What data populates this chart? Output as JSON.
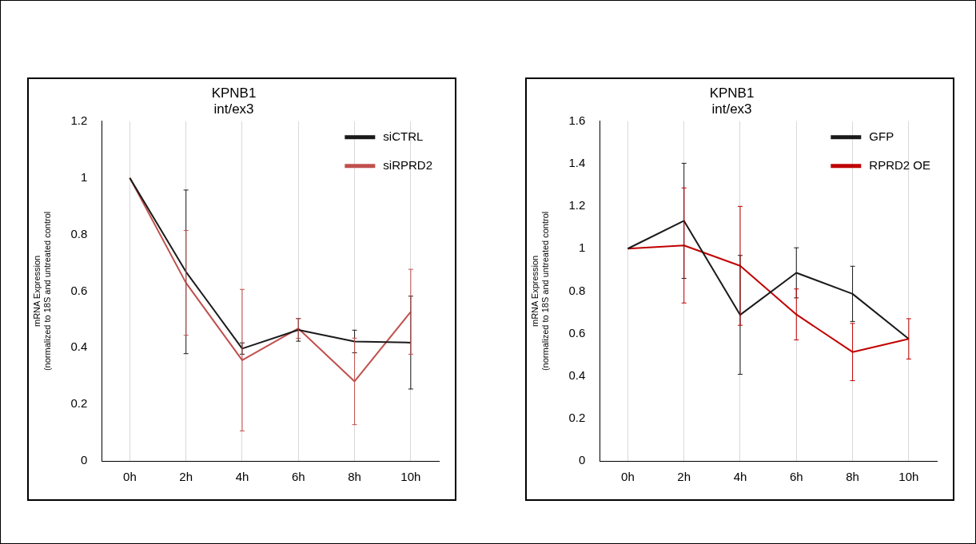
{
  "chart_data": [
    {
      "type": "line",
      "title": "KPNB1\nint/ex3",
      "ylabel": "mRNA Expression\n(normalized to 18S and untreated control",
      "categories": [
        "0h",
        "2h",
        "4h",
        "6h",
        "8h",
        "10h"
      ],
      "ylim": [
        0,
        1.2
      ],
      "yticks": [
        0,
        0.2,
        0.4,
        0.6,
        0.8,
        1,
        1.2
      ],
      "grid": "x",
      "legend": "top right",
      "marker": "none",
      "line_style": "solid",
      "series": [
        {
          "name": "siCTRL",
          "color": "#1a1a1a",
          "values": [
            1,
            0.668,
            0.397,
            0.463,
            0.422,
            0.418
          ],
          "errors": [
            null,
            0.289,
            0.02,
            0.04,
            0.04,
            0.164
          ]
        },
        {
          "name": "siRPRD2",
          "color": "#c0504d",
          "values": [
            1,
            0.629,
            0.356,
            0.468,
            0.281,
            0.527
          ],
          "errors": [
            null,
            0.185,
            0.25,
            0.035,
            0.153,
            0.15
          ]
        }
      ]
    },
    {
      "type": "line",
      "title": "KPNB1\nint/ex3",
      "ylabel": "mRNA Expression\n(normalized to 18S and untreated control",
      "categories": [
        "0h",
        "2h",
        "4h",
        "6h",
        "8h",
        "10h"
      ],
      "ylim": [
        0,
        1.6
      ],
      "yticks": [
        0,
        0.2,
        0.4,
        0.6,
        0.8,
        1,
        1.2,
        1.4,
        1.6
      ],
      "grid": "x",
      "legend": "top right",
      "marker": "none",
      "line_style": "solid",
      "series": [
        {
          "name": "GFP",
          "color": "#1a1a1a",
          "values": [
            1,
            1.131,
            0.688,
            0.886,
            0.787,
            0.575
          ],
          "errors": [
            null,
            0.271,
            0.28,
            0.118,
            0.13,
            null
          ]
        },
        {
          "name": "RPRD2 OE",
          "color": "#c00000",
          "values": [
            1,
            1.015,
            0.919,
            0.69,
            0.513,
            0.575
          ],
          "errors": [
            null,
            0.271,
            0.28,
            0.12,
            0.135,
            0.095
          ]
        }
      ]
    }
  ]
}
